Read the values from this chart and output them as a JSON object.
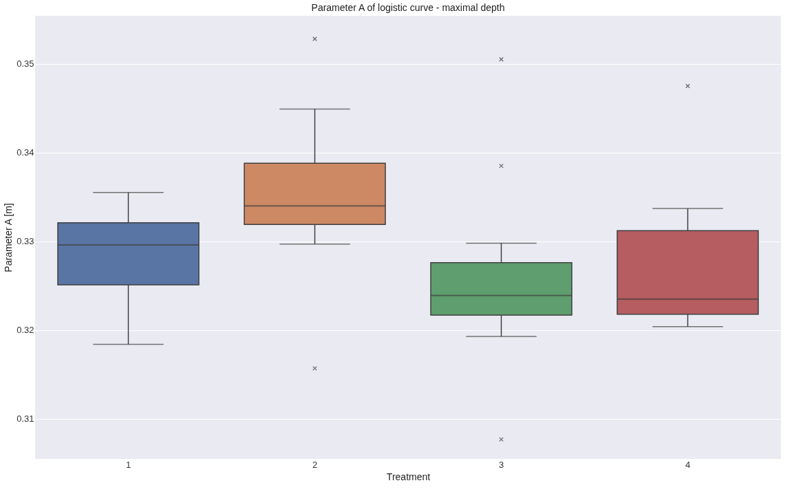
{
  "chart_data": {
    "type": "box",
    "title": "Parameter A of logistic curve - maximal depth",
    "xlabel": "Treatment",
    "ylabel": "Parameter A [m]",
    "categories": [
      "1",
      "2",
      "3",
      "4"
    ],
    "colors": [
      "#5975a4",
      "#cc8963",
      "#5f9e6e",
      "#b55d60"
    ],
    "boxes": [
      {
        "low": 0.3184,
        "q1": 0.3251,
        "median": 0.3296,
        "q3": 0.3321,
        "high": 0.3355
      },
      {
        "low": 0.3297,
        "q1": 0.3319,
        "median": 0.334,
        "q3": 0.3388,
        "high": 0.3449,
        "outliers": [
          0.3528,
          0.3157
        ]
      },
      {
        "low": 0.3193,
        "q1": 0.3217,
        "median": 0.3239,
        "q3": 0.3276,
        "high": 0.3298,
        "outliers": [
          0.3505,
          0.3385,
          0.3077
        ]
      },
      {
        "low": 0.3204,
        "q1": 0.3218,
        "median": 0.3235,
        "q3": 0.3312,
        "high": 0.3337,
        "outliers": [
          0.3475
        ]
      }
    ],
    "ylim": [
      0.3055,
      0.3554
    ],
    "yticks": [
      0.31,
      0.32,
      0.33,
      0.34,
      0.35
    ],
    "grid": "y"
  }
}
